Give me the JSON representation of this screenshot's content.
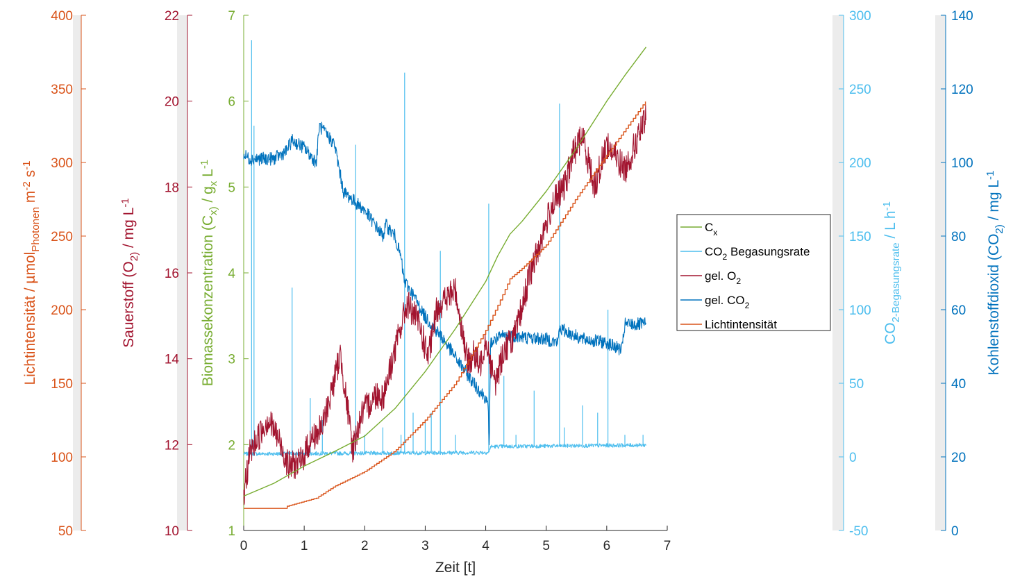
{
  "chart_data": {
    "type": "line",
    "grid": false,
    "legend_position": "right",
    "x_axis": {
      "label": "Zeit [t]",
      "range": [
        0,
        7
      ],
      "ticks": [
        "0",
        "1",
        "2",
        "3",
        "4",
        "5",
        "6",
        "7"
      ]
    },
    "y_axes": [
      {
        "id": "light",
        "label": "Lichtintensität / µmol_Photonen m^-2 s^-1",
        "color": "#D95319",
        "range": [
          50,
          400
        ],
        "ticks": [
          "50",
          "100",
          "150",
          "200",
          "250",
          "300",
          "350",
          "400"
        ]
      },
      {
        "id": "o2",
        "label": "Sauerstoff (O_2) / mg L^-1",
        "color": "#A2142F",
        "range": [
          10,
          22
        ],
        "ticks": [
          "10",
          "12",
          "14",
          "16",
          "18",
          "20",
          "22"
        ]
      },
      {
        "id": "cx",
        "label": "Biomassekonzentration (C_x) / g_x L^-1",
        "color": "#77AC30",
        "range": [
          1,
          7
        ],
        "ticks": [
          "1",
          "2",
          "3",
          "4",
          "5",
          "6",
          "7"
        ]
      },
      {
        "id": "co2rate",
        "label": "CO_2-Begasungsrate / L h^-1",
        "color": "#4DBEEE",
        "range": [
          -50,
          300
        ],
        "ticks": [
          "-50",
          "0",
          "50",
          "100",
          "150",
          "200",
          "250",
          "300"
        ]
      },
      {
        "id": "co2",
        "label": "Kohlenstoffdioxid (CO_2) / mg L^-1",
        "color": "#0072BD",
        "range": [
          0,
          140
        ],
        "ticks": [
          "0",
          "20",
          "40",
          "60",
          "80",
          "100",
          "120",
          "140"
        ]
      }
    ],
    "series": [
      {
        "name": "C_x",
        "axis": "cx",
        "color": "#77AC30",
        "style": "smooth",
        "x": [
          0,
          0.5,
          1,
          1.5,
          2,
          2.5,
          3,
          3.5,
          4,
          4.2,
          4.4,
          4.6,
          5,
          5.5,
          6,
          6.3,
          6.65
        ],
        "y": [
          1.4,
          1.55,
          1.75,
          1.92,
          2.1,
          2.42,
          2.85,
          3.35,
          3.9,
          4.2,
          4.45,
          4.6,
          4.95,
          5.45,
          6.0,
          6.3,
          6.63
        ]
      },
      {
        "name": "CO_2 Begasungsrate",
        "axis": "co2rate",
        "color": "#4DBEEE",
        "style": "noisy",
        "noise": 1.3,
        "x": [
          0,
          4.05,
          4.08,
          6.65
        ],
        "y": [
          2,
          3,
          7,
          8
        ],
        "spikes": [
          {
            "x": 0.13,
            "y": 283
          },
          {
            "x": 0.17,
            "y": 225
          },
          {
            "x": 0.8,
            "y": 115
          },
          {
            "x": 1.1,
            "y": 40
          },
          {
            "x": 1.3,
            "y": 25
          },
          {
            "x": 1.85,
            "y": 212
          },
          {
            "x": 2.0,
            "y": 15
          },
          {
            "x": 2.3,
            "y": 20
          },
          {
            "x": 2.6,
            "y": 15
          },
          {
            "x": 2.66,
            "y": 261
          },
          {
            "x": 2.8,
            "y": 30
          },
          {
            "x": 3.0,
            "y": 25
          },
          {
            "x": 3.1,
            "y": 30
          },
          {
            "x": 3.25,
            "y": 140
          },
          {
            "x": 3.5,
            "y": 15
          },
          {
            "x": 4.05,
            "y": 172
          },
          {
            "x": 4.3,
            "y": 55
          },
          {
            "x": 4.5,
            "y": 15
          },
          {
            "x": 4.8,
            "y": 45
          },
          {
            "x": 5.22,
            "y": 240
          },
          {
            "x": 5.3,
            "y": 20
          },
          {
            "x": 5.6,
            "y": 35
          },
          {
            "x": 5.85,
            "y": 30
          },
          {
            "x": 6.02,
            "y": 100
          },
          {
            "x": 6.3,
            "y": 15
          },
          {
            "x": 6.6,
            "y": 15
          }
        ]
      },
      {
        "name": "gel. O_2",
        "axis": "o2",
        "color": "#A2142F",
        "style": "noisy",
        "noise": 0.35,
        "x": [
          0,
          0.1,
          0.4,
          0.55,
          0.75,
          0.95,
          1.1,
          1.3,
          1.6,
          1.8,
          1.95,
          2.2,
          2.3,
          2.5,
          2.7,
          2.9,
          3.05,
          3.2,
          3.5,
          3.7,
          3.8,
          3.9,
          4.0,
          4.15,
          4.3,
          4.5,
          4.7,
          4.9,
          5.1,
          5.3,
          5.45,
          5.6,
          5.8,
          6.0,
          6.3,
          6.65
        ],
        "y": [
          10.8,
          11.8,
          12.6,
          12.2,
          11.5,
          11.6,
          12.1,
          12.4,
          14.1,
          11.9,
          12.7,
          13.2,
          13.1,
          14.2,
          15.3,
          14.8,
          14.0,
          15.2,
          15.6,
          13.9,
          14.1,
          13.8,
          14.5,
          13.4,
          14.2,
          14.6,
          15.8,
          16.7,
          17.6,
          18.0,
          18.8,
          19.2,
          18.0,
          19.0,
          18.4,
          19.6
        ]
      },
      {
        "name": "gel. CO_2",
        "axis": "co2",
        "color": "#0072BD",
        "style": "noisy",
        "noise": 1.8,
        "x": [
          0,
          0.1,
          0.5,
          0.7,
          0.8,
          1.0,
          1.2,
          1.25,
          1.5,
          1.65,
          2.0,
          2.3,
          2.35,
          2.5,
          2.6,
          2.65,
          2.8,
          3.0,
          3.3,
          3.5,
          3.8,
          4.0,
          4.04,
          4.06,
          4.08,
          4.3,
          5.0,
          5.2,
          5.21,
          5.6,
          6.0,
          6.25,
          6.3,
          6.4,
          6.65
        ],
        "y": [
          102,
          101,
          101,
          103,
          106,
          104,
          100,
          110,
          105,
          92,
          87,
          80,
          83,
          80,
          74,
          68,
          64,
          58,
          52,
          47,
          40,
          36,
          33,
          23,
          51,
          53,
          52,
          51,
          55,
          52,
          51,
          49,
          56,
          56,
          56
        ]
      },
      {
        "name": "Lichtintensität",
        "axis": "light",
        "color": "#D95319",
        "style": "step",
        "x": [
          0,
          0.72,
          0.72,
          1.2,
          1.5,
          2.0,
          2.5,
          3.0,
          3.5,
          4.0,
          4.2,
          4.4,
          4.6,
          5.0,
          5.5,
          6.0,
          6.3,
          6.65
        ],
        "y": [
          65,
          65,
          66.5,
          72,
          80,
          90,
          104,
          125,
          150,
          186,
          203,
          221,
          228,
          244,
          276,
          305,
          322,
          342
        ]
      }
    ],
    "legend": [
      "C_x",
      "CO_2 Begasungsrate",
      "gel. O_2",
      "gel. CO_2",
      "Lichtintensität"
    ]
  }
}
